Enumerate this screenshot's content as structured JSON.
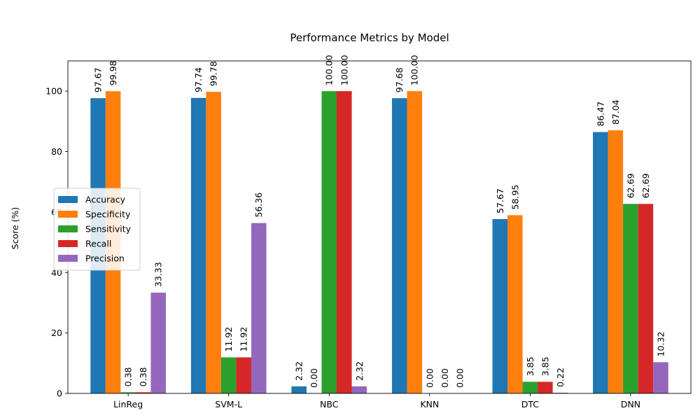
{
  "chart_data": {
    "type": "bar",
    "title": "Performance Metrics by Model",
    "xlabel": "",
    "ylabel": "Score (%)",
    "ylim": [
      0,
      110
    ],
    "yticks": [
      0,
      20,
      40,
      60,
      80,
      100
    ],
    "categories": [
      "LinReg",
      "SVM-L",
      "NBC",
      "KNN",
      "DTC",
      "DNN"
    ],
    "legend_position": "center-left",
    "grid": false,
    "series": [
      {
        "name": "Accuracy",
        "color": "#1f77b4",
        "values": [
          97.67,
          97.74,
          2.32,
          97.68,
          57.67,
          86.47
        ],
        "labels": [
          "97.67",
          "97.74",
          "2.32",
          "97.68",
          "57.67",
          "86.47"
        ]
      },
      {
        "name": "Specificity",
        "color": "#ff7f0e",
        "values": [
          99.98,
          99.78,
          0.0,
          100.0,
          58.95,
          87.04
        ],
        "labels": [
          "99.98",
          "99.78",
          "0.00",
          "100.00",
          "58.95",
          "87.04"
        ]
      },
      {
        "name": "Sensitivity",
        "color": "#2ca02c",
        "values": [
          0.38,
          11.92,
          100.0,
          0.0,
          3.85,
          62.69
        ],
        "labels": [
          "0.38",
          "11.92",
          "100.00",
          "0.00",
          "3.85",
          "62.69"
        ]
      },
      {
        "name": "Recall",
        "color": "#d62728",
        "values": [
          0.38,
          11.92,
          100.0,
          0.0,
          3.85,
          62.69
        ],
        "labels": [
          "0.38",
          "11.92",
          "100.00",
          "0.00",
          "3.85",
          "62.69"
        ]
      },
      {
        "name": "Precision",
        "color": "#9467bd",
        "values": [
          33.33,
          56.36,
          2.32,
          0.0,
          0.22,
          10.32
        ],
        "labels": [
          "33.33",
          "56.36",
          "2.32",
          "0.00",
          "0.22",
          "10.32"
        ]
      }
    ]
  }
}
